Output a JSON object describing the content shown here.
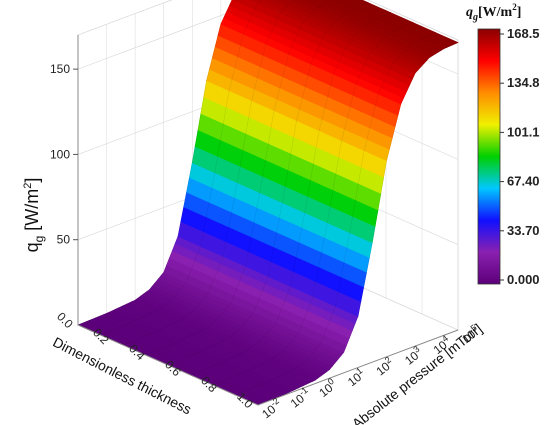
{
  "chart_data": {
    "type": "surface3d",
    "title": "",
    "z_title_main": "q",
    "z_title_sub": "g",
    "z_title_unit": " [W/m",
    "z_title_sup": "2",
    "z_title_close": "]",
    "z_ticks": [
      "50",
      "100",
      "150"
    ],
    "z_tick_values": [
      50,
      100,
      150
    ],
    "zlim": [
      0,
      170
    ],
    "x_title": "Dimensionless thickness",
    "x_ticks": [
      "0.0",
      "0.2",
      "0.4",
      "0.6",
      "0.8",
      "1.0"
    ],
    "x_tick_values": [
      0.0,
      0.2,
      0.4,
      0.6,
      0.8,
      1.0
    ],
    "y_title": "Absolute pressure [mTorr]",
    "y_tick_base": "10",
    "y_tick_exponents": [
      "-2",
      "-1",
      "0",
      "1",
      "2",
      "3",
      "4",
      "5"
    ],
    "colorbar": {
      "title_main": "q",
      "title_sub": "g",
      "title_unit": "[W/m",
      "title_sup": "2",
      "title_close": "]",
      "labels": [
        "168.5",
        "134.8",
        "101.1",
        "67.40",
        "33.70",
        "0.000"
      ],
      "min": 0.0,
      "max": 168.5
    },
    "surface_profile": {
      "pressure_log10": [
        -2,
        -1,
        0,
        0.5,
        1,
        1.5,
        2,
        2.5,
        3,
        3.5,
        4,
        4.5,
        5
      ],
      "qg": [
        0,
        0.5,
        2,
        5,
        12,
        30,
        70,
        115,
        145,
        160,
        166,
        168,
        168.5
      ]
    },
    "colors": {
      "colormap": [
        "#5c007a",
        "#8a20b0",
        "#1010ff",
        "#00c8ff",
        "#00d000",
        "#f0f000",
        "#ff8c00",
        "#ff0000",
        "#8b0000"
      ],
      "grid": "#d8d8d8",
      "axis": "#888888"
    }
  }
}
